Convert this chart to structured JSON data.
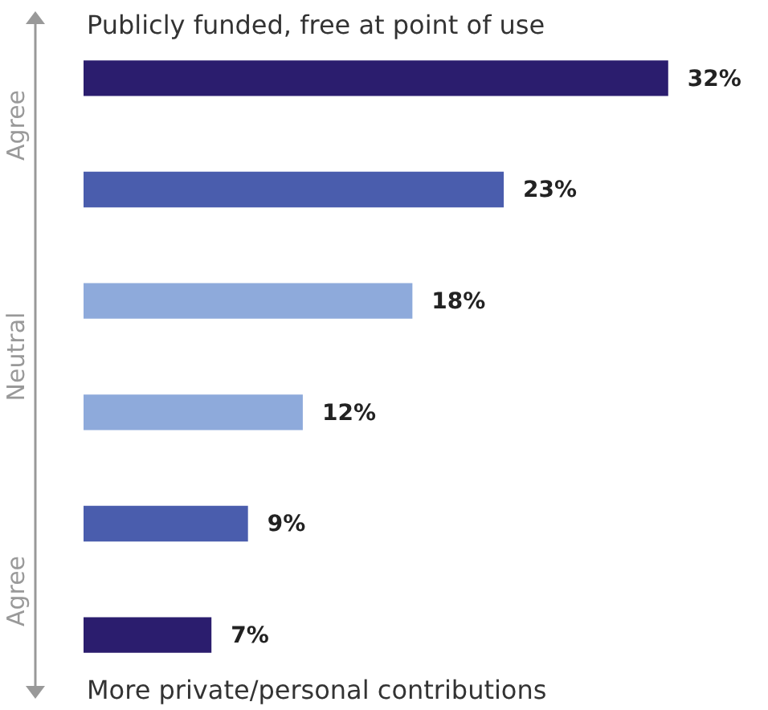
{
  "chart_data": {
    "type": "bar",
    "orientation": "horizontal",
    "categories": [
      null,
      null,
      null,
      null,
      null,
      null
    ],
    "values": [
      32,
      23,
      18,
      12,
      9,
      7
    ],
    "colors": [
      "#2b1d6e",
      "#4a5dad",
      "#8eaadb",
      "#8eaadb",
      "#4a5dad",
      "#2b1d6e"
    ],
    "value_labels": [
      "32%",
      "23%",
      "18%",
      "12%",
      "9%",
      "7%"
    ],
    "annotations": [
      "Publicly funded, free at point of use",
      "Agree",
      "Neutral",
      "Agree",
      "More private/personal contributions"
    ],
    "legend": false
  }
}
